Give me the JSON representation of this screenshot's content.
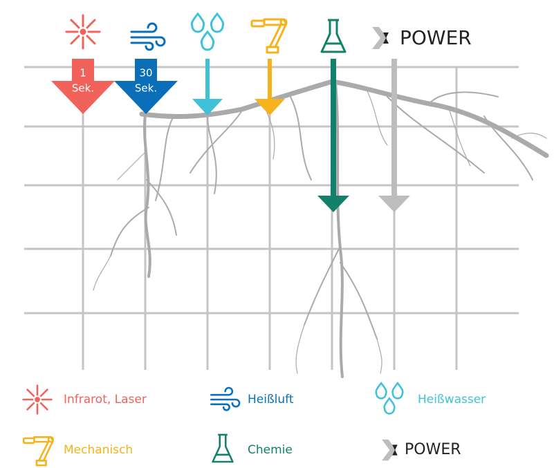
{
  "header": {
    "brand": "POWER"
  },
  "arrows": [
    {
      "value": "1",
      "unit": "Sek."
    },
    {
      "value": "30",
      "unit": "Sek."
    }
  ],
  "legend": [
    {
      "label": "Infrarot, Laser"
    },
    {
      "label": "Heißluft"
    },
    {
      "label": "Heißwasser"
    },
    {
      "label": "Mechanisch"
    },
    {
      "label": "Chemie"
    },
    {
      "label": "POWER"
    }
  ]
}
